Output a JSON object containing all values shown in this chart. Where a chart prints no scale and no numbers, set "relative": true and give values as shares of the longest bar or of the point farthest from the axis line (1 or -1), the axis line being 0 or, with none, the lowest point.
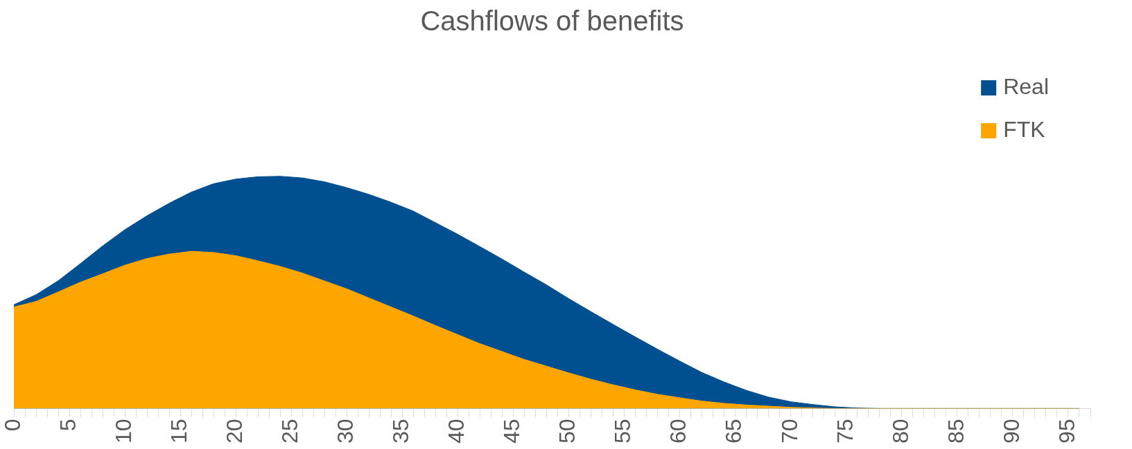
{
  "chart_data": {
    "type": "area",
    "title": "Cashflows of benefits",
    "relative": true,
    "legend": "top right",
    "marker": "none",
    "x": [
      0,
      2,
      4,
      6,
      8,
      10,
      12,
      14,
      16,
      18,
      20,
      22,
      24,
      26,
      28,
      30,
      32,
      34,
      36,
      38,
      40,
      42,
      44,
      46,
      48,
      50,
      52,
      54,
      56,
      58,
      60,
      62,
      64,
      66,
      68,
      70,
      72,
      74,
      76,
      78,
      80,
      82,
      84,
      86,
      88,
      90,
      92,
      94,
      96
    ],
    "xlim": [
      0,
      97
    ],
    "xticks": [
      0,
      {
        "value": 1,
        "label": null
      },
      {
        "value": 2,
        "label": null
      },
      {
        "value": 3,
        "label": null
      },
      {
        "value": 4,
        "label": null
      },
      5,
      {
        "value": 6,
        "label": null
      },
      {
        "value": 7,
        "label": null
      },
      {
        "value": 8,
        "label": null
      },
      {
        "value": 9,
        "label": null
      },
      10,
      {
        "value": 11,
        "label": null
      },
      {
        "value": 12,
        "label": null
      },
      {
        "value": 13,
        "label": null
      },
      {
        "value": 14,
        "label": null
      },
      15,
      {
        "value": 16,
        "label": null
      },
      {
        "value": 17,
        "label": null
      },
      {
        "value": 18,
        "label": null
      },
      {
        "value": 19,
        "label": null
      },
      20,
      {
        "value": 21,
        "label": null
      },
      {
        "value": 22,
        "label": null
      },
      {
        "value": 23,
        "label": null
      },
      {
        "value": 24,
        "label": null
      },
      25,
      {
        "value": 26,
        "label": null
      },
      {
        "value": 27,
        "label": null
      },
      {
        "value": 28,
        "label": null
      },
      {
        "value": 29,
        "label": null
      },
      30,
      {
        "value": 31,
        "label": null
      },
      {
        "value": 32,
        "label": null
      },
      {
        "value": 33,
        "label": null
      },
      {
        "value": 34,
        "label": null
      },
      35,
      {
        "value": 36,
        "label": null
      },
      {
        "value": 37,
        "label": null
      },
      {
        "value": 38,
        "label": null
      },
      {
        "value": 39,
        "label": null
      },
      40,
      {
        "value": 41,
        "label": null
      },
      {
        "value": 42,
        "label": null
      },
      {
        "value": 43,
        "label": null
      },
      {
        "value": 44,
        "label": null
      },
      45,
      {
        "value": 46,
        "label": null
      },
      {
        "value": 47,
        "label": null
      },
      {
        "value": 48,
        "label": null
      },
      {
        "value": 49,
        "label": null
      },
      50,
      {
        "value": 51,
        "label": null
      },
      {
        "value": 52,
        "label": null
      },
      {
        "value": 53,
        "label": null
      },
      {
        "value": 54,
        "label": null
      },
      55,
      {
        "value": 56,
        "label": null
      },
      {
        "value": 57,
        "label": null
      },
      {
        "value": 58,
        "label": null
      },
      {
        "value": 59,
        "label": null
      },
      60,
      {
        "value": 61,
        "label": null
      },
      {
        "value": 62,
        "label": null
      },
      {
        "value": 63,
        "label": null
      },
      {
        "value": 64,
        "label": null
      },
      65,
      {
        "value": 66,
        "label": null
      },
      {
        "value": 67,
        "label": null
      },
      {
        "value": 68,
        "label": null
      },
      {
        "value": 69,
        "label": null
      },
      70,
      {
        "value": 71,
        "label": null
      },
      {
        "value": 72,
        "label": null
      },
      {
        "value": 73,
        "label": null
      },
      {
        "value": 74,
        "label": null
      },
      75,
      {
        "value": 76,
        "label": null
      },
      {
        "value": 77,
        "label": null
      },
      {
        "value": 78,
        "label": null
      },
      {
        "value": 79,
        "label": null
      },
      80,
      {
        "value": 81,
        "label": null
      },
      {
        "value": 82,
        "label": null
      },
      {
        "value": 83,
        "label": null
      },
      {
        "value": 84,
        "label": null
      },
      85,
      {
        "value": 86,
        "label": null
      },
      {
        "value": 87,
        "label": null
      },
      {
        "value": 88,
        "label": null
      },
      {
        "value": 89,
        "label": null
      },
      90,
      {
        "value": 91,
        "label": null
      },
      {
        "value": 92,
        "label": null
      },
      {
        "value": 93,
        "label": null
      },
      {
        "value": 94,
        "label": null
      },
      95,
      {
        "value": 96,
        "label": null
      },
      {
        "value": 97,
        "label": null
      }
    ],
    "series": [
      {
        "name": "Real",
        "color": "#005091",
        "values": [
          0.447,
          0.49,
          0.55,
          0.624,
          0.7,
          0.77,
          0.83,
          0.884,
          0.932,
          0.968,
          0.988,
          0.998,
          1,
          0.993,
          0.976,
          0.951,
          0.922,
          0.888,
          0.85,
          0.8,
          0.75,
          0.697,
          0.643,
          0.587,
          0.532,
          0.473,
          0.417,
          0.362,
          0.308,
          0.255,
          0.204,
          0.155,
          0.114,
          0.078,
          0.049,
          0.029,
          0.017,
          0.007,
          0.002,
          0,
          0,
          0,
          0,
          0,
          0,
          0,
          0,
          0,
          0
        ]
      },
      {
        "name": "FTK",
        "color": "#ffa500",
        "values": [
          0.437,
          0.461,
          0.502,
          0.544,
          0.58,
          0.617,
          0.646,
          0.665,
          0.677,
          0.672,
          0.658,
          0.636,
          0.612,
          0.583,
          0.549,
          0.515,
          0.476,
          0.437,
          0.398,
          0.357,
          0.318,
          0.279,
          0.245,
          0.211,
          0.182,
          0.153,
          0.126,
          0.102,
          0.08,
          0.061,
          0.046,
          0.032,
          0.022,
          0.015,
          0.01,
          0.005,
          0.002,
          0,
          0,
          0,
          0,
          0,
          0,
          0,
          0,
          0,
          0,
          0,
          0
        ]
      }
    ]
  }
}
